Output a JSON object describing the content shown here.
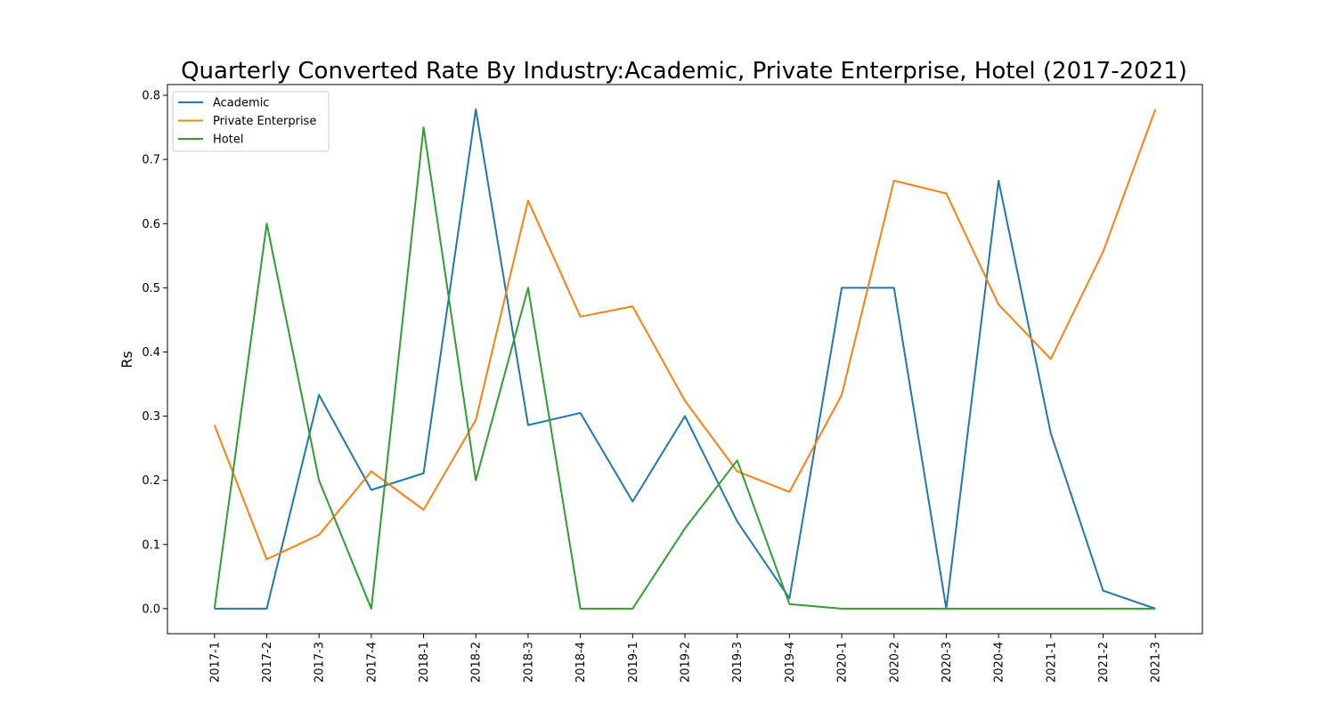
{
  "chart_data": {
    "type": "line",
    "title": "Quarterly Converted Rate By Industry:Academic, Private Enterprise, Hotel (2017-2021)",
    "xlabel": "",
    "ylabel": "Rs",
    "ylim": [
      -0.039,
      0.8167
    ],
    "yticks": [
      0.0,
      0.1,
      0.2,
      0.3,
      0.4,
      0.5,
      0.6,
      0.7,
      0.8
    ],
    "ytick_labels": [
      "0.0",
      "0.1",
      "0.2",
      "0.3",
      "0.4",
      "0.5",
      "0.6",
      "0.7",
      "0.8"
    ],
    "grid": false,
    "legend": "top-left",
    "categories": [
      "2017-1",
      "2017-2",
      "2017-3",
      "2017-4",
      "2018-1",
      "2018-2",
      "2018-3",
      "2018-4",
      "2019-1",
      "2019-2",
      "2019-3",
      "2019-4",
      "2020-1",
      "2020-2",
      "2020-3",
      "2020-4",
      "2021-1",
      "2021-2",
      "2021-3"
    ],
    "series": [
      {
        "name": "Academic",
        "color": "#1f77b4",
        "values": [
          0.0,
          0.0,
          0.333,
          0.185,
          0.211,
          0.778,
          0.286,
          0.305,
          0.167,
          0.3,
          0.136,
          0.016,
          0.5,
          0.5,
          0.0,
          0.667,
          0.273,
          0.028,
          0.0
        ]
      },
      {
        "name": "Private Enterprise",
        "color": "#ff7f0e",
        "values": [
          0.286,
          0.077,
          0.115,
          0.214,
          0.154,
          0.294,
          0.636,
          0.455,
          0.471,
          0.324,
          0.214,
          0.182,
          0.333,
          0.667,
          0.647,
          0.474,
          0.389,
          0.556,
          0.778
        ]
      },
      {
        "name": "Hotel",
        "color": "#2ca02c",
        "values": [
          0.0,
          0.6,
          0.2,
          0.0,
          0.75,
          0.2,
          0.5,
          0.0,
          0.0,
          0.125,
          0.231,
          0.007,
          0.0,
          0.0,
          0.0,
          0.0,
          0.0,
          0.0,
          0.0
        ]
      }
    ]
  }
}
